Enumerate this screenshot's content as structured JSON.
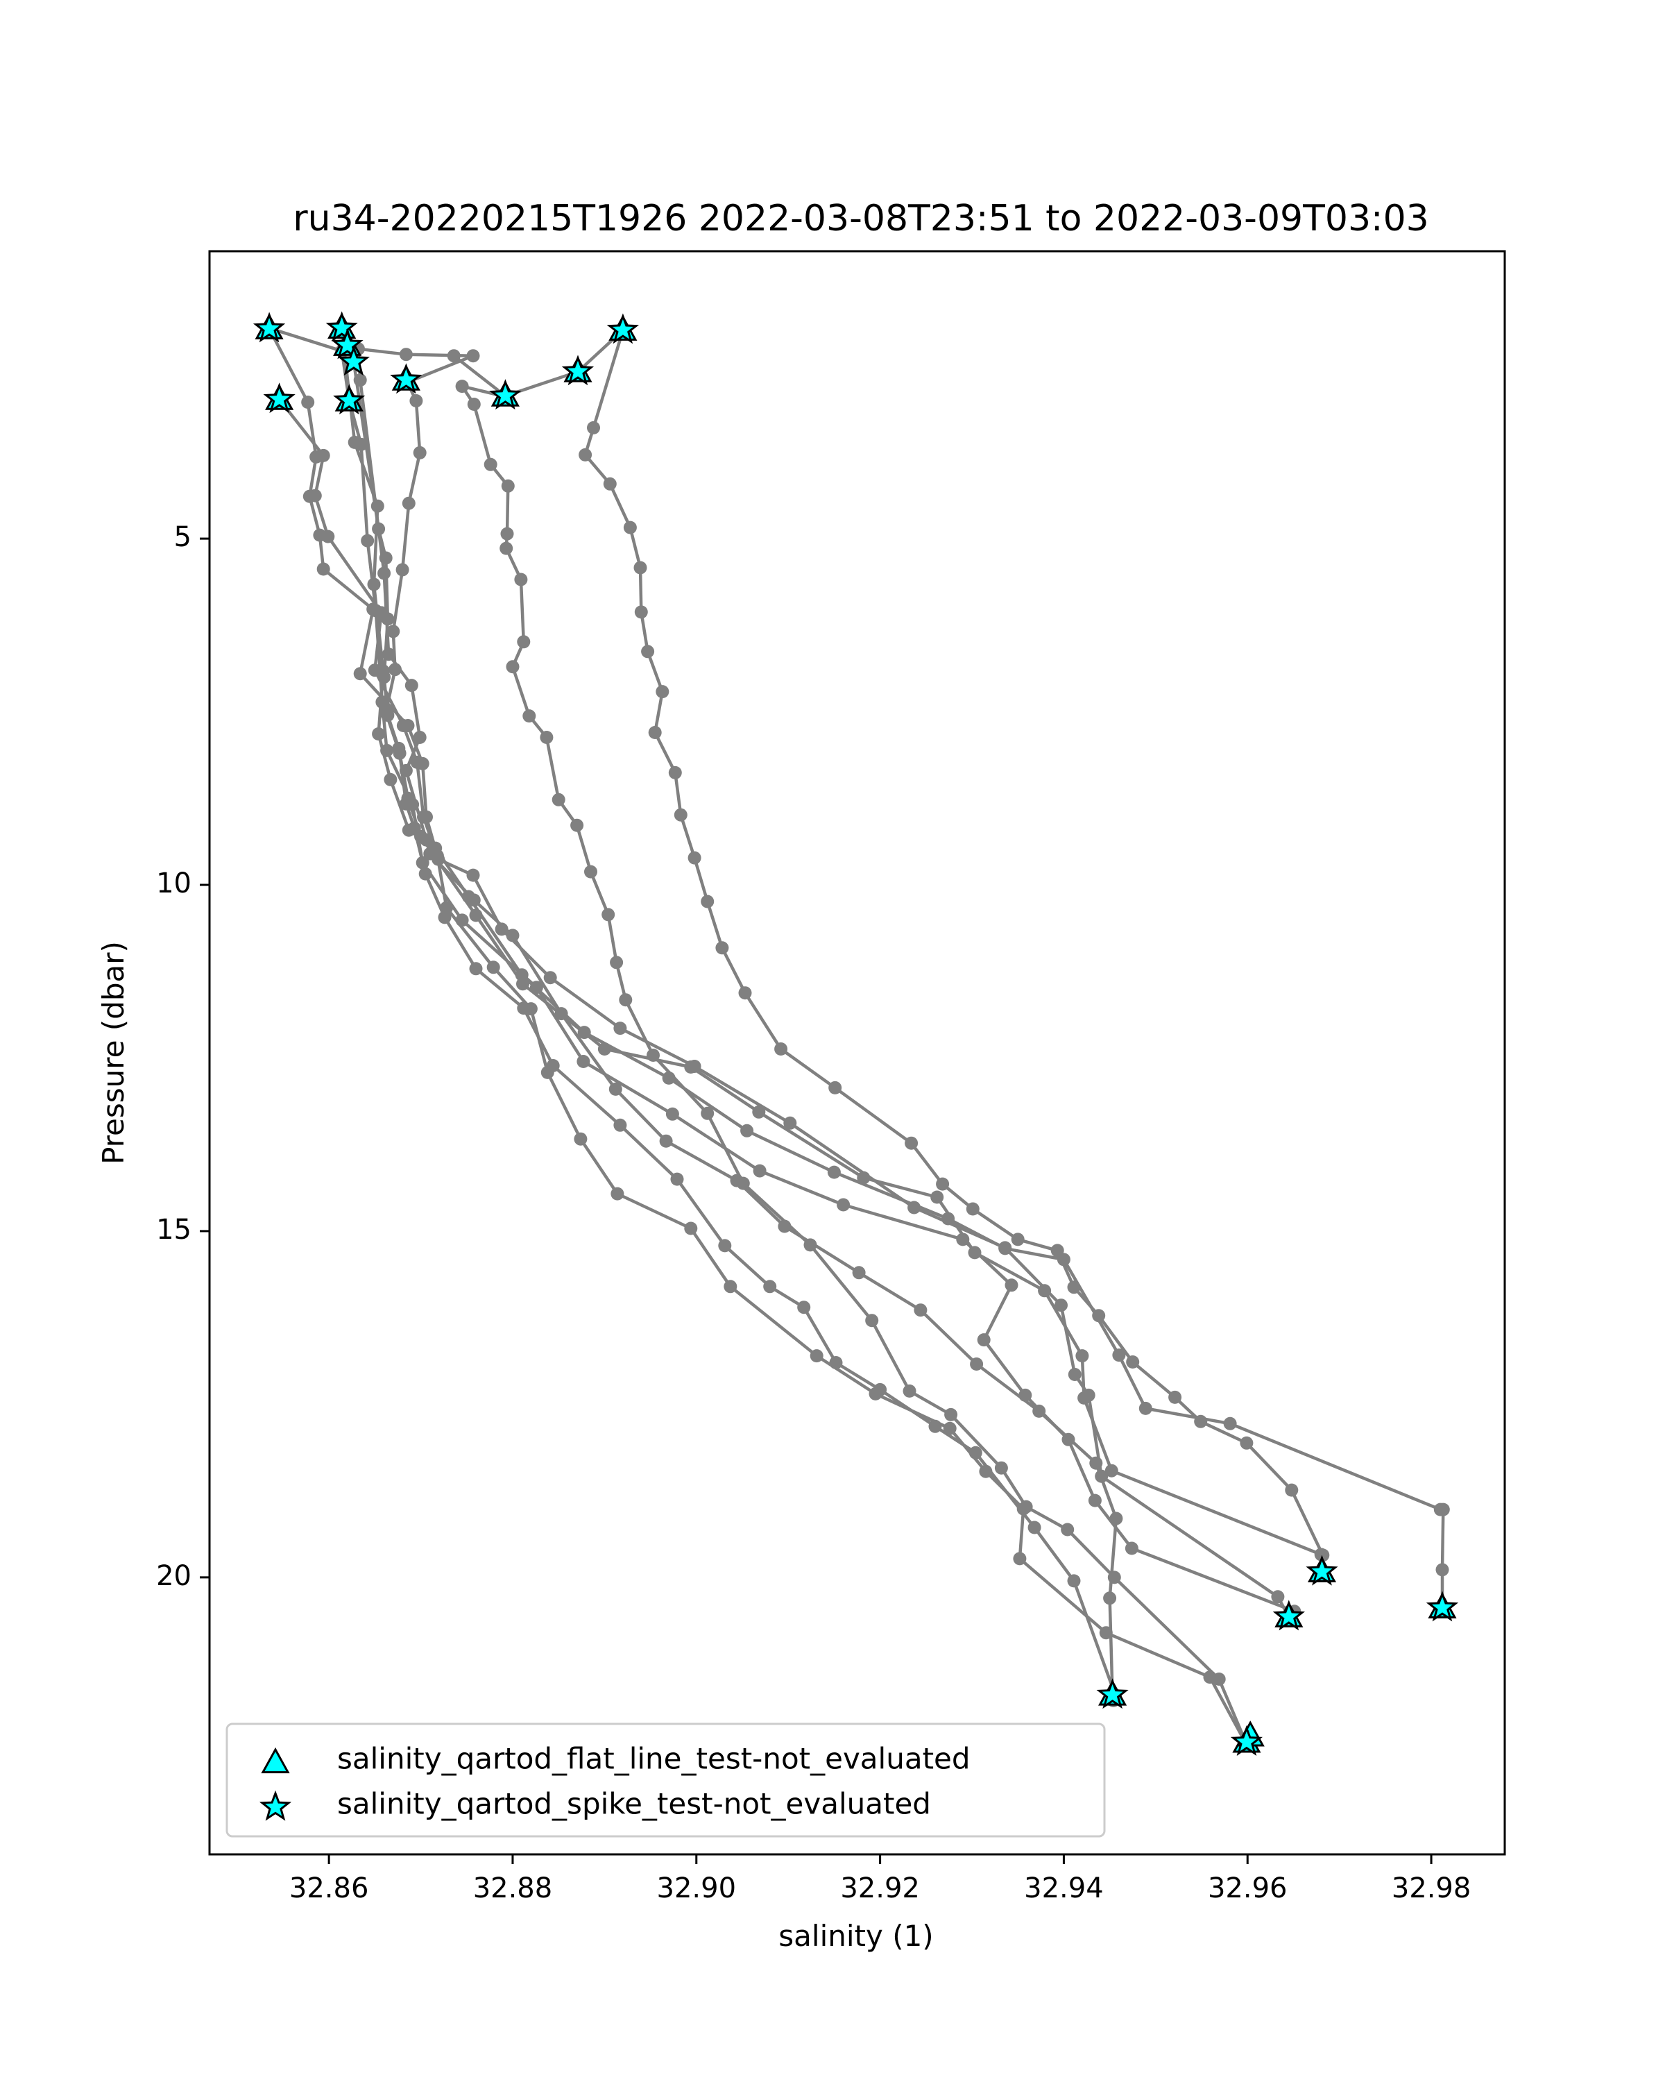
{
  "chart_data": {
    "type": "line",
    "title": "ru34-20220215T1926 2022-03-08T23:51 to 2022-03-09T03:03",
    "xlabel": "salinity (1)",
    "ylabel": "Pressure (dbar)",
    "xlim": [
      32.847,
      32.988
    ],
    "ylim": [
      24.0,
      0.85
    ],
    "y_inverted": true,
    "grid": false,
    "xticks": [
      32.86,
      32.88,
      32.9,
      32.92,
      32.94,
      32.96,
      32.98
    ],
    "xtick_labels": [
      "32.86",
      "32.88",
      "32.90",
      "32.92",
      "32.94",
      "32.96",
      "32.98"
    ],
    "yticks": [
      5,
      10,
      15,
      20
    ],
    "ytick_labels": [
      "5",
      "10",
      "15",
      "20"
    ],
    "colors": {
      "line": "#808080",
      "marker_fill": "#00ffff",
      "marker_edge": "#000000"
    },
    "series": [
      {
        "values": [
          [
            32.8535,
            1.97
          ],
          [
            32.8577,
            3.03
          ],
          [
            32.8586,
            3.82
          ],
          [
            32.8579,
            4.39
          ],
          [
            32.859,
            4.95
          ],
          [
            32.8594,
            5.44
          ],
          [
            32.8648,
            6.02
          ],
          [
            32.8634,
            6.95
          ],
          [
            32.8686,
            7.7
          ],
          [
            32.8702,
            8.25
          ],
          [
            32.8706,
            9.02
          ],
          [
            32.8718,
            9.58
          ],
          [
            32.8728,
            10.33
          ],
          [
            32.8779,
            11.19
          ],
          [
            32.882,
            11.79
          ],
          [
            32.8838,
            12.71
          ],
          [
            32.8874,
            13.67
          ],
          [
            32.8914,
            14.46
          ],
          [
            32.8994,
            14.96
          ],
          [
            32.9037,
            15.8
          ],
          [
            32.9131,
            16.8
          ],
          [
            32.9195,
            17.35
          ],
          [
            32.9276,
            17.85
          ],
          [
            32.9315,
            18.47
          ],
          [
            32.9356,
            19.01
          ],
          [
            32.9352,
            19.73
          ],
          [
            32.9446,
            20.8
          ],
          [
            32.9559,
            21.44
          ],
          [
            32.9597,
            22.37
          ]
        ]
      },
      {
        "values": [
          [
            32.8546,
            2.99
          ],
          [
            32.8594,
            3.8
          ],
          [
            32.8585,
            4.38
          ],
          [
            32.8599,
            4.97
          ],
          [
            32.8657,
            6.07
          ],
          [
            32.865,
            6.9
          ],
          [
            32.8681,
            7.7
          ],
          [
            32.8696,
            8.23
          ],
          [
            32.8703,
            9.02
          ],
          [
            32.8719,
            9.63
          ],
          [
            32.8757,
            9.86
          ],
          [
            32.8788,
            10.64
          ],
          [
            32.8841,
            11.34
          ],
          [
            32.8917,
            12.07
          ],
          [
            32.8998,
            12.62
          ],
          [
            32.9102,
            13.44
          ],
          [
            32.9237,
            14.66
          ],
          [
            32.9336,
            15.24
          ],
          [
            32.9397,
            16.07
          ],
          [
            32.9412,
            17.07
          ],
          [
            32.9427,
            17.37
          ],
          [
            32.9441,
            18.54
          ],
          [
            32.9633,
            20.28
          ],
          [
            32.9645,
            20.57
          ]
        ]
      },
      {
        "values": [
          [
            32.8535,
            1.96
          ],
          [
            32.8614,
            2.29
          ],
          [
            32.8622,
            3.01
          ],
          [
            32.8635,
            3.64
          ],
          [
            32.8642,
            5.03
          ],
          [
            32.8651,
            6.04
          ],
          [
            32.8658,
            7.36
          ],
          [
            32.8663,
            8.06
          ],
          [
            32.8691,
            8.84
          ],
          [
            32.8702,
            9.68
          ],
          [
            32.8745,
            10.51
          ],
          [
            32.8826,
            11.48
          ],
          [
            32.8877,
            12.55
          ],
          [
            32.8974,
            13.31
          ],
          [
            32.9069,
            14.13
          ],
          [
            32.916,
            14.62
          ],
          [
            32.929,
            15.12
          ],
          [
            32.9343,
            15.78
          ],
          [
            32.9313,
            16.57
          ],
          [
            32.9358,
            17.37
          ],
          [
            32.9405,
            18.01
          ],
          [
            32.9434,
            18.89
          ],
          [
            32.9474,
            19.58
          ],
          [
            32.9651,
            20.49
          ]
        ]
      },
      {
        "values": [
          [
            32.8614,
            1.96
          ],
          [
            32.8628,
            3.61
          ],
          [
            32.8653,
            4.53
          ],
          [
            32.8649,
            5.66
          ],
          [
            32.8659,
            6.91
          ],
          [
            32.8654,
            7.82
          ],
          [
            32.8667,
            8.48
          ],
          [
            32.8687,
            9.21
          ],
          [
            32.8716,
            9.47
          ],
          [
            32.8752,
            10.17
          ],
          [
            32.881,
            11.3
          ],
          [
            32.8878,
            12.13
          ],
          [
            32.897,
            12.79
          ],
          [
            32.9055,
            13.55
          ],
          [
            32.915,
            14.15
          ],
          [
            32.9274,
            14.82
          ],
          [
            32.9336,
            15.25
          ],
          [
            32.94,
            15.41
          ],
          [
            32.946,
            16.79
          ],
          [
            32.9489,
            17.56
          ],
          [
            32.9581,
            17.78
          ],
          [
            32.981,
            19.02
          ],
          [
            32.9813,
            19.02
          ],
          [
            32.9812,
            19.89
          ],
          [
            32.9812,
            20.44
          ]
        ]
      },
      {
        "values": [
          [
            32.862,
            2.21
          ],
          [
            32.8627,
            2.45
          ],
          [
            32.8654,
            4.86
          ],
          [
            32.8662,
            5.28
          ],
          [
            32.8664,
            6.16
          ],
          [
            32.866,
            7.0
          ],
          [
            32.8664,
            7.55
          ],
          [
            32.8676,
            8.03
          ],
          [
            32.8686,
            8.75
          ],
          [
            32.87,
            9.3
          ],
          [
            32.876,
            10.44
          ],
          [
            32.8811,
            11.43
          ],
          [
            32.89,
            12.37
          ],
          [
            32.8994,
            12.63
          ],
          [
            32.9068,
            13.28
          ],
          [
            32.9182,
            14.23
          ],
          [
            32.9262,
            14.51
          ],
          [
            32.9303,
            15.31
          ],
          [
            32.9379,
            15.86
          ],
          [
            32.942,
            16.8
          ],
          [
            32.9422,
            17.41
          ],
          [
            32.9452,
            18.46
          ],
          [
            32.968,
            19.67
          ],
          [
            32.9681,
            19.92
          ]
        ]
      },
      {
        "values": [
          [
            32.8684,
            2.75
          ],
          [
            32.8757,
            2.36
          ],
          [
            32.8684,
            2.34
          ],
          [
            32.8632,
            2.26
          ],
          [
            32.8634,
            2.71
          ],
          [
            32.866,
            5.5
          ],
          [
            32.8665,
            6.67
          ],
          [
            32.869,
            7.12
          ],
          [
            32.8699,
            7.87
          ],
          [
            32.8684,
            8.35
          ],
          [
            32.8706,
            9.35
          ],
          [
            32.871,
            9.55
          ],
          [
            32.8758,
            10.22
          ],
          [
            32.88,
            10.73
          ],
          [
            32.8853,
            11.86
          ],
          [
            32.8912,
            12.95
          ],
          [
            32.8967,
            13.7
          ],
          [
            32.9044,
            14.27
          ],
          [
            32.9096,
            14.93
          ],
          [
            32.9177,
            15.6
          ],
          [
            32.9244,
            16.14
          ],
          [
            32.9305,
            16.92
          ],
          [
            32.9373,
            17.6
          ],
          [
            32.9435,
            18.35
          ],
          [
            32.9457,
            19.15
          ],
          [
            32.945,
            20.3
          ],
          [
            32.9453,
            21.7
          ]
        ]
      },
      {
        "values": [
          [
            32.8684,
            2.71
          ],
          [
            32.8695,
            3.01
          ],
          [
            32.8699,
            3.76
          ],
          [
            32.8687,
            4.49
          ],
          [
            32.868,
            5.45
          ],
          [
            32.867,
            6.34
          ],
          [
            32.8672,
            6.89
          ],
          [
            32.8662,
            7.51
          ],
          [
            32.8677,
            8.1
          ],
          [
            32.8684,
            8.83
          ],
          [
            32.8693,
            9.18
          ],
          [
            32.8705,
            9.84
          ],
          [
            32.8726,
            10.47
          ],
          [
            32.876,
            11.21
          ],
          [
            32.8812,
            11.78
          ],
          [
            32.8844,
            12.61
          ],
          [
            32.8917,
            13.47
          ],
          [
            32.8979,
            14.25
          ],
          [
            32.9031,
            15.21
          ],
          [
            32.908,
            15.8
          ],
          [
            32.9117,
            16.1
          ],
          [
            32.9152,
            16.9
          ],
          [
            32.92,
            17.29
          ],
          [
            32.926,
            17.82
          ],
          [
            32.9304,
            18.2
          ],
          [
            32.9368,
            19.28
          ],
          [
            32.9411,
            20.05
          ],
          [
            32.9456,
            21.7
          ],
          [
            32.9454,
            21.78
          ]
        ]
      },
      {
        "values": [
          [
            32.8792,
            2.95
          ],
          [
            32.8745,
            2.8
          ],
          [
            32.8758,
            3.06
          ],
          [
            32.8776,
            3.93
          ],
          [
            32.8795,
            4.24
          ],
          [
            32.8794,
            4.93
          ],
          [
            32.8793,
            5.14
          ],
          [
            32.8809,
            5.59
          ],
          [
            32.8812,
            6.49
          ],
          [
            32.88,
            6.85
          ],
          [
            32.8818,
            7.56
          ],
          [
            32.8837,
            7.87
          ],
          [
            32.885,
            8.77
          ],
          [
            32.887,
            9.14
          ],
          [
            32.8885,
            9.81
          ],
          [
            32.8904,
            10.43
          ],
          [
            32.8913,
            11.12
          ],
          [
            32.8923,
            11.66
          ],
          [
            32.8953,
            12.46
          ],
          [
            32.9012,
            13.3
          ],
          [
            32.9051,
            14.31
          ],
          [
            32.9124,
            15.2
          ],
          [
            32.9191,
            16.29
          ],
          [
            32.9232,
            17.31
          ],
          [
            32.9277,
            17.65
          ],
          [
            32.9332,
            18.42
          ],
          [
            32.9359,
            18.98
          ],
          [
            32.9404,
            19.31
          ],
          [
            32.9455,
            20.0
          ],
          [
            32.9569,
            21.47
          ],
          [
            32.9598,
            22.38
          ]
        ]
      },
      {
        "values": [
          [
            32.8736,
            2.36
          ],
          [
            32.8792,
            2.94
          ],
          [
            32.8871,
            2.59
          ],
          [
            32.892,
            1.99
          ],
          [
            32.8888,
            3.4
          ],
          [
            32.8879,
            3.79
          ],
          [
            32.8906,
            4.21
          ],
          [
            32.8928,
            4.84
          ],
          [
            32.8939,
            5.42
          ],
          [
            32.894,
            6.06
          ],
          [
            32.8947,
            6.63
          ],
          [
            32.8963,
            7.21
          ],
          [
            32.8955,
            7.8
          ],
          [
            32.8977,
            8.38
          ],
          [
            32.8983,
            8.99
          ],
          [
            32.8998,
            9.61
          ],
          [
            32.9012,
            10.24
          ],
          [
            32.9028,
            10.91
          ],
          [
            32.9053,
            11.56
          ],
          [
            32.9092,
            12.37
          ],
          [
            32.9151,
            12.93
          ],
          [
            32.9234,
            13.73
          ],
          [
            32.9268,
            14.32
          ],
          [
            32.9301,
            14.68
          ],
          [
            32.935,
            15.12
          ],
          [
            32.9393,
            15.28
          ],
          [
            32.9411,
            15.81
          ],
          [
            32.9438,
            16.22
          ],
          [
            32.9475,
            16.89
          ],
          [
            32.9521,
            17.4
          ],
          [
            32.9549,
            17.75
          ],
          [
            32.9599,
            18.06
          ],
          [
            32.9648,
            18.74
          ],
          [
            32.9682,
            19.68
          ],
          [
            32.9683,
            19.92
          ]
        ]
      }
    ],
    "flags": [
      {
        "name": "salinity_qartod_flat_line_test-not_evaluated",
        "marker": "triangle",
        "points": [
          [
            32.8535,
            1.97
          ],
          [
            32.8614,
            1.96
          ],
          [
            32.862,
            2.21
          ],
          [
            32.8546,
            2.99
          ],
          [
            32.8622,
            3.01
          ],
          [
            32.8684,
            2.71
          ],
          [
            32.8792,
            2.94
          ],
          [
            32.8871,
            2.59
          ],
          [
            32.892,
            1.99
          ],
          [
            32.9453,
            21.7
          ],
          [
            32.9599,
            22.38
          ],
          [
            32.9603,
            22.29
          ],
          [
            32.9645,
            20.57
          ],
          [
            32.9681,
            19.92
          ],
          [
            32.9812,
            20.44
          ]
        ]
      },
      {
        "name": "salinity_qartod_spike_test-not_evaluated",
        "marker": "star",
        "points": [
          [
            32.8535,
            1.97
          ],
          [
            32.8614,
            1.96
          ],
          [
            32.862,
            2.21
          ],
          [
            32.8627,
            2.45
          ],
          [
            32.8546,
            2.99
          ],
          [
            32.8622,
            3.01
          ],
          [
            32.8684,
            2.71
          ],
          [
            32.8792,
            2.94
          ],
          [
            32.8871,
            2.59
          ],
          [
            32.892,
            1.99
          ],
          [
            32.9453,
            21.7
          ],
          [
            32.9599,
            22.38
          ],
          [
            32.9645,
            20.57
          ],
          [
            32.9681,
            19.92
          ],
          [
            32.9812,
            20.44
          ]
        ]
      }
    ],
    "legend": {
      "placement": "lower-left",
      "entries": [
        {
          "marker": "triangle",
          "label": "salinity_qartod_flat_line_test-not_evaluated"
        },
        {
          "marker": "star",
          "label": "salinity_qartod_spike_test-not_evaluated"
        }
      ]
    }
  }
}
